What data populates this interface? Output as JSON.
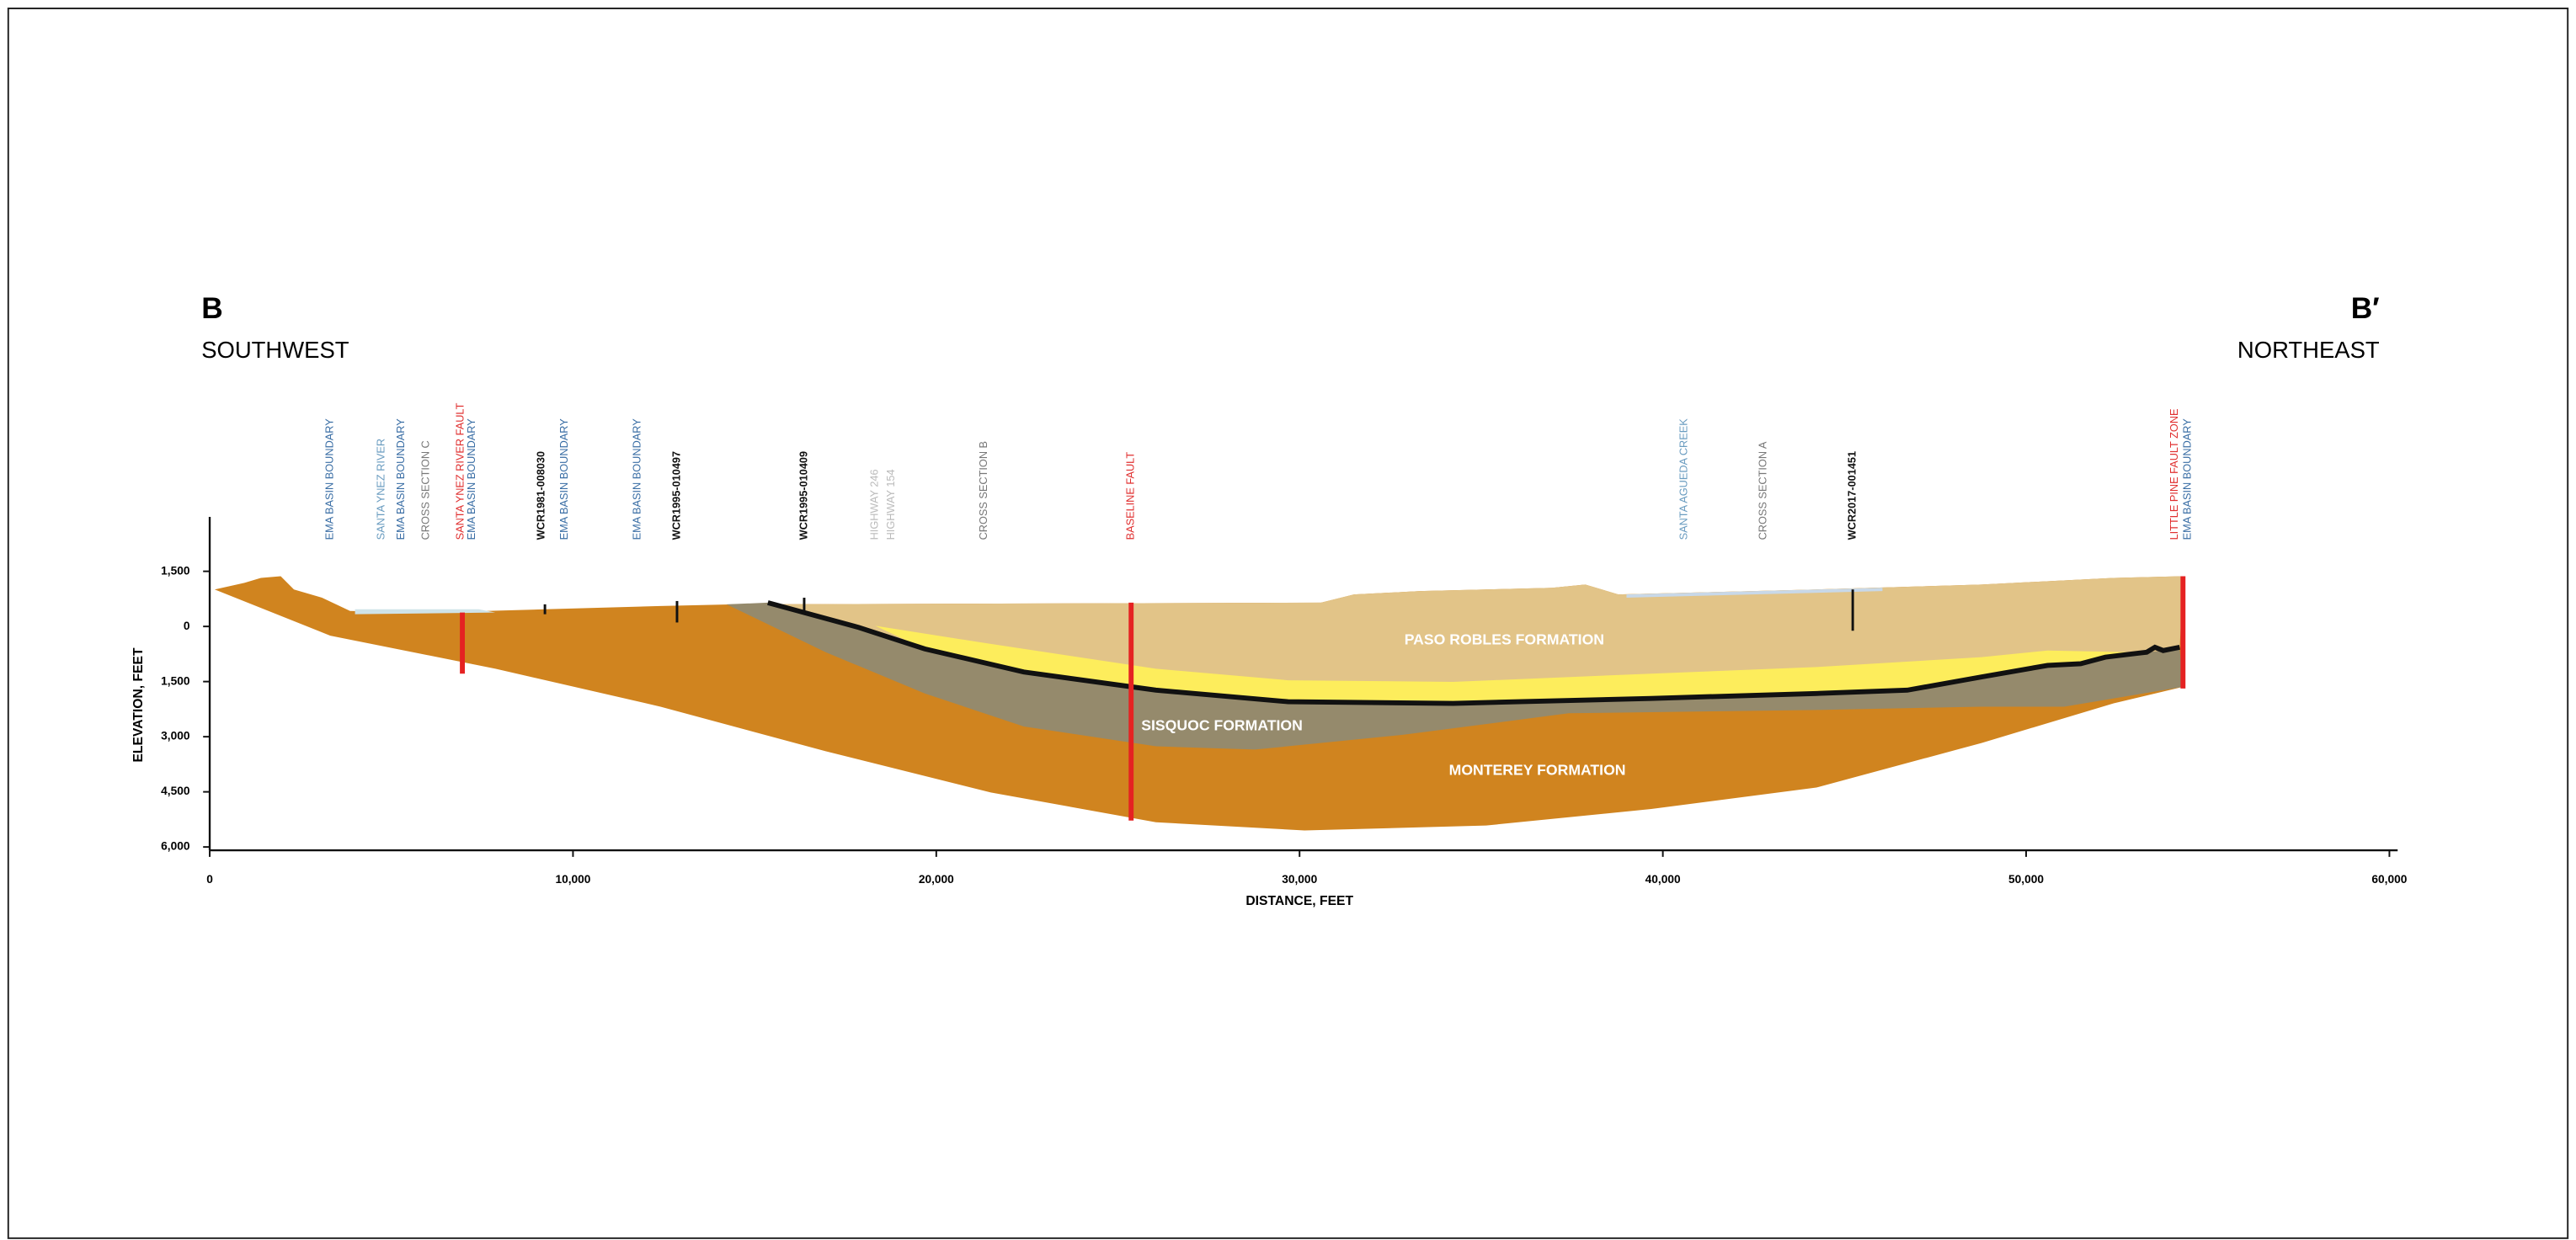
{
  "section": {
    "left_letter": "B",
    "left_direction": "SOUTHWEST",
    "right_letter": "B′",
    "right_direction": "NORTHEAST"
  },
  "axes": {
    "y_label": "ELEVATION, FEET",
    "x_label": "DISTANCE, FEET",
    "y_ticks": [
      {
        "value": 1500,
        "label": "1,500"
      },
      {
        "value": 0,
        "label": "0"
      },
      {
        "value": -1500,
        "label": "1,500"
      },
      {
        "value": -3000,
        "label": "3,000"
      },
      {
        "value": -4500,
        "label": "4,500"
      },
      {
        "value": -6000,
        "label": "6,000"
      }
    ],
    "x_ticks": [
      {
        "value": 0,
        "label": "0"
      },
      {
        "value": 10000,
        "label": "10,000"
      },
      {
        "value": 20000,
        "label": "20,000"
      },
      {
        "value": 30000,
        "label": "30,000"
      },
      {
        "value": 40000,
        "label": "40,000"
      },
      {
        "value": 50000,
        "label": "50,000"
      },
      {
        "value": 60000,
        "label": "60,000"
      }
    ]
  },
  "formations": [
    "PASO ROBLES FORMATION",
    "SISQUOC FORMATION",
    "MONTEREY FORMATION"
  ],
  "annotations": [
    {
      "label": "EMA BASIN BOUNDARY",
      "color": "#3a6ea5"
    },
    {
      "label": "SANTA YNEZ RIVER",
      "color": "#6a9cc0"
    },
    {
      "label": "EMA BASIN BOUNDARY",
      "color": "#3a6ea5"
    },
    {
      "label": "CROSS SECTION C",
      "color": "#777777"
    },
    {
      "label": "SANTA YNEZ RIVER FAULT",
      "color": "#e03030"
    },
    {
      "label": "EMA BASIN BOUNDARY",
      "color": "#3a6ea5"
    },
    {
      "label": "WCR1981-008030",
      "color": "#111111"
    },
    {
      "label": "EMA BASIN BOUNDARY",
      "color": "#3a6ea5"
    },
    {
      "label": "EMA BASIN BOUNDARY",
      "color": "#3a6ea5"
    },
    {
      "label": "WCR1995-010497",
      "color": "#111111"
    },
    {
      "label": "WCR1995-010409",
      "color": "#111111"
    },
    {
      "label": "HIGHWAY 246",
      "color": "#bbbbbb"
    },
    {
      "label": "HIGHWAY 154",
      "color": "#bbbbbb"
    },
    {
      "label": "CROSS SECTION B",
      "color": "#777777"
    },
    {
      "label": "BASELINE FAULT",
      "color": "#e03030"
    },
    {
      "label": "SANTA AGUEDA CREEK",
      "color": "#6a9cc0"
    },
    {
      "label": "CROSS SECTION A",
      "color": "#777777"
    },
    {
      "label": "WCR2017-001451",
      "color": "#111111"
    },
    {
      "label": "LITTLE PINE FAULT ZONE",
      "color": "#e03030"
    },
    {
      "label": "EMA BASIN BOUNDARY",
      "color": "#3a6ea5"
    }
  ]
}
